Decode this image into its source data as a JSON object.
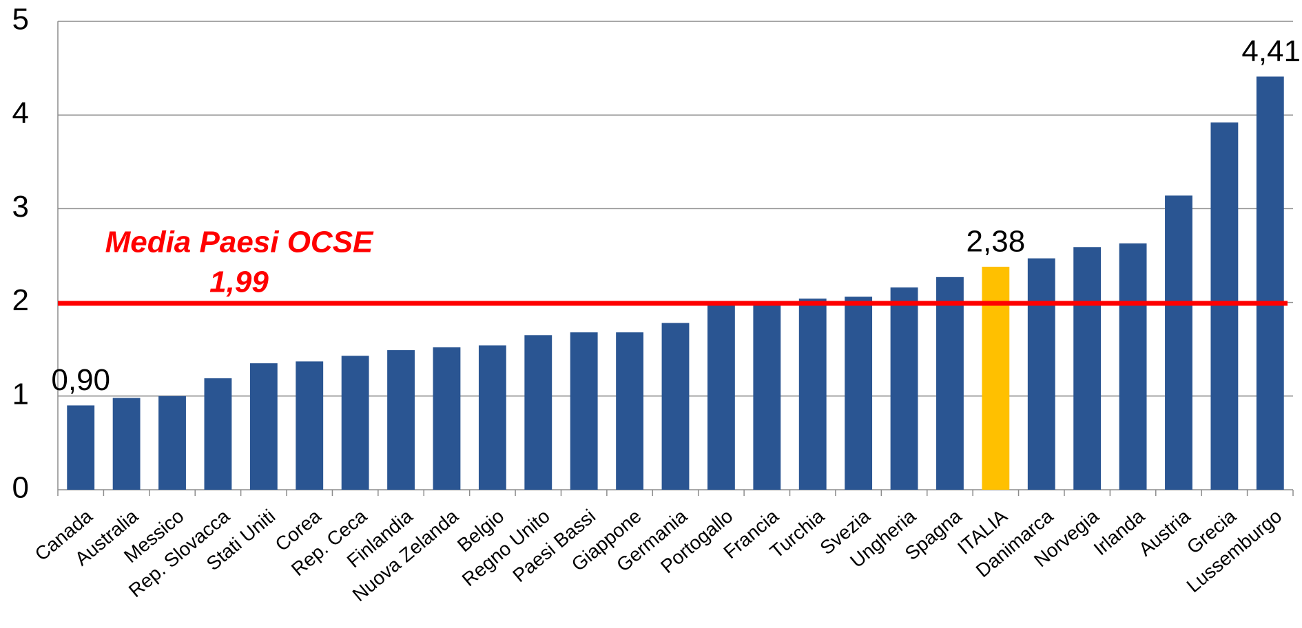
{
  "chart_data": {
    "type": "bar",
    "categories": [
      "Canada",
      "Australia",
      "Messico",
      "Rep. Slovacca",
      "Stati Uniti",
      "Corea",
      "Rep. Ceca",
      "Finlandia",
      "Nuova Zelanda",
      "Belgio",
      "Regno Unito",
      "Paesi Bassi",
      "Giappone",
      "Germania",
      "Portogallo",
      "Francia",
      "Turchia",
      "Svezia",
      "Ungheria",
      "Spagna",
      "ITALIA",
      "Danimarca",
      "Norvegia",
      "Irlanda",
      "Austria",
      "Grecia",
      "Lussemburgo"
    ],
    "values": [
      0.9,
      0.98,
      1.0,
      1.19,
      1.35,
      1.37,
      1.43,
      1.49,
      1.52,
      1.54,
      1.65,
      1.68,
      1.68,
      1.78,
      1.97,
      1.97,
      2.04,
      2.06,
      2.16,
      2.27,
      2.38,
      2.47,
      2.59,
      2.63,
      3.14,
      3.92,
      4.41
    ],
    "value_labels": [
      "0,90",
      null,
      null,
      null,
      null,
      null,
      null,
      null,
      null,
      null,
      null,
      null,
      null,
      null,
      null,
      null,
      null,
      null,
      null,
      null,
      "2,38",
      null,
      null,
      null,
      null,
      null,
      "4,41"
    ],
    "colors": [
      "#2a5592",
      "#2a5592",
      "#2a5592",
      "#2a5592",
      "#2a5592",
      "#2a5592",
      "#2a5592",
      "#2a5592",
      "#2a5592",
      "#2a5592",
      "#2a5592",
      "#2a5592",
      "#2a5592",
      "#2a5592",
      "#2a5592",
      "#2a5592",
      "#2a5592",
      "#2a5592",
      "#2a5592",
      "#2a5592",
      "#ffc000",
      "#2a5592",
      "#2a5592",
      "#2a5592",
      "#2a5592",
      "#2a5592",
      "#2a5592"
    ],
    "ylim": [
      0,
      5
    ],
    "yticks": [
      0,
      1,
      2,
      3,
      4,
      5
    ],
    "grid": true,
    "reference_line": {
      "name": "Media Paesi OCSE",
      "value": 1.99,
      "label": "1,99",
      "color": "#ff0000"
    }
  }
}
